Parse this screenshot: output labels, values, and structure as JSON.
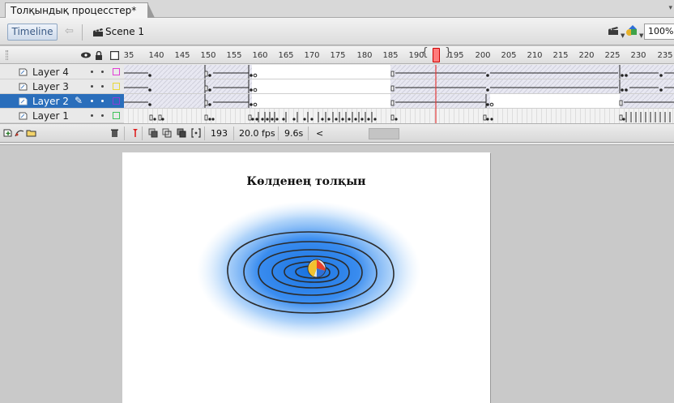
{
  "document": {
    "tab_title": "Толқындық процесстер*"
  },
  "editbar": {
    "timeline_label": "Timeline",
    "scene_label": "Scene 1",
    "zoom": "100%"
  },
  "timeline": {
    "ruler_labels": [
      "35",
      "140",
      "145",
      "150",
      "155",
      "160",
      "165",
      "170",
      "175",
      "180",
      "185",
      "190",
      "195",
      "200",
      "205",
      "210",
      "215",
      "220",
      "225",
      "230",
      "235"
    ],
    "layers": [
      {
        "name": "Layer 4",
        "color": "#e23fd6",
        "selected": false
      },
      {
        "name": "Layer 3",
        "color": "#e8d83a",
        "selected": false
      },
      {
        "name": "Layer 2",
        "color": "#8a3fd6",
        "selected": true
      },
      {
        "name": "Layer 1",
        "color": "#3fc25a",
        "selected": false
      }
    ],
    "footer": {
      "current_frame": "193",
      "frame_rate": "20.0 fps",
      "elapsed_time": "9.6s",
      "scroll_left": "<"
    }
  },
  "stage": {
    "title": "Көлденең толқын",
    "ripple_colors": {
      "glow": "#1a73e0",
      "rings": "#2b2b2b",
      "ball": [
        "#f2c230",
        "#e8412e",
        "#2f6fd6",
        "#3cb44a"
      ]
    }
  }
}
